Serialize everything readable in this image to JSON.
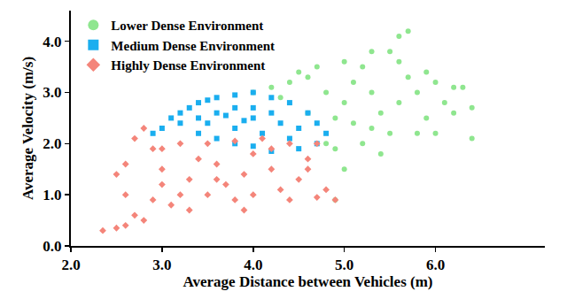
{
  "chart_data": {
    "type": "scatter",
    "x_label": "Average Distance between Vehicles (m)",
    "y_label": "Average Velocity (m/s)",
    "xlim": [
      2.0,
      7.2
    ],
    "ylim": [
      0.0,
      4.6
    ],
    "xticks": [
      {
        "value": 2,
        "label": "2.0"
      },
      {
        "value": 3,
        "label": "3.0"
      },
      {
        "value": 4,
        "label": "4.0"
      },
      {
        "value": 5,
        "label": "5.0"
      },
      {
        "value": 6,
        "label": "6.0"
      }
    ],
    "yticks": [
      {
        "value": 0,
        "label": "0.0"
      },
      {
        "value": 1,
        "label": "1.0"
      },
      {
        "value": 2,
        "label": "2.0"
      },
      {
        "value": 3,
        "label": "3.0"
      },
      {
        "value": 4,
        "label": "4.0"
      }
    ],
    "grid": false,
    "legend": "upper left",
    "series": [
      {
        "name": "Lower Dense Environment",
        "color": "#8fe68f",
        "marker": "circle",
        "x": [
          4.0,
          4.2,
          4.4,
          4.6,
          4.8,
          4.9,
          5.0,
          5.1,
          5.2,
          5.3,
          5.4,
          5.5,
          5.6,
          5.7,
          5.8,
          5.9,
          6.0,
          6.1,
          6.2,
          6.3,
          6.4,
          5.6,
          5.7,
          5.5,
          5.3,
          5.0,
          4.7,
          4.5,
          4.9,
          5.0,
          4.8,
          5.2,
          5.4,
          5.8,
          6.0,
          6.2,
          5.1,
          5.3,
          4.9,
          4.6,
          5.6,
          5.9,
          4.3,
          6.4
        ],
        "values": [
          3.0,
          3.1,
          3.2,
          3.3,
          3.0,
          2.5,
          2.8,
          3.2,
          3.5,
          3.0,
          2.6,
          2.2,
          2.8,
          3.3,
          3.0,
          2.5,
          2.2,
          2.8,
          2.6,
          3.1,
          2.1,
          4.1,
          4.2,
          3.8,
          3.8,
          3.6,
          3.5,
          3.4,
          1.9,
          1.5,
          2.0,
          2.0,
          1.8,
          2.2,
          3.2,
          3.1,
          2.4,
          2.3,
          0.9,
          2.6,
          3.6,
          3.4,
          2.9,
          2.7
        ]
      },
      {
        "name": "Medium Dense Environment",
        "color": "#1aaeef",
        "marker": "square",
        "x": [
          3.2,
          3.3,
          3.4,
          3.5,
          3.6,
          3.8,
          4.0,
          3.4,
          3.6,
          3.8,
          4.0,
          4.2,
          4.4,
          4.6,
          4.7,
          4.8,
          4.7,
          4.5,
          4.2,
          4.0,
          3.8,
          3.6,
          3.4,
          3.2,
          3.0,
          3.5,
          3.8,
          4.1,
          4.3,
          4.5,
          4.0,
          4.2,
          3.9,
          4.4,
          3.7,
          2.9,
          3.1
        ],
        "values": [
          2.6,
          2.7,
          2.8,
          2.85,
          2.9,
          2.95,
          3.0,
          2.5,
          2.6,
          2.7,
          2.7,
          2.9,
          2.8,
          2.6,
          2.4,
          2.2,
          2.0,
          1.9,
          1.85,
          1.95,
          2.0,
          2.1,
          2.2,
          2.4,
          2.3,
          2.4,
          2.3,
          2.2,
          2.4,
          2.3,
          2.5,
          2.6,
          2.45,
          2.1,
          2.55,
          2.2,
          2.5
        ]
      },
      {
        "name": "Highly Dense Environment",
        "color": "#f4857a",
        "marker": "diamond",
        "x": [
          2.35,
          2.5,
          2.6,
          2.8,
          2.5,
          2.6,
          2.7,
          2.8,
          2.9,
          3.0,
          3.0,
          3.1,
          3.2,
          3.3,
          3.4,
          3.5,
          3.6,
          3.7,
          3.8,
          3.9,
          4.0,
          4.1,
          4.2,
          4.3,
          4.4,
          4.5,
          4.6,
          4.7,
          4.8,
          4.9,
          4.7,
          3.5,
          3.3,
          2.9,
          3.0,
          3.2,
          3.8,
          4.4,
          4.0,
          2.6,
          3.6,
          4.2,
          4.6,
          3.9,
          2.7
        ],
        "values": [
          0.3,
          0.35,
          0.4,
          0.5,
          1.4,
          1.6,
          2.1,
          2.3,
          1.9,
          1.5,
          1.2,
          0.8,
          1.0,
          1.3,
          1.7,
          2.0,
          1.6,
          1.2,
          0.9,
          1.4,
          1.8,
          2.1,
          1.5,
          1.1,
          0.9,
          1.3,
          1.7,
          2.0,
          1.1,
          0.9,
          0.95,
          1.0,
          0.7,
          0.9,
          1.9,
          2.0,
          2.05,
          2.0,
          1.0,
          1.0,
          1.3,
          1.9,
          1.5,
          0.7,
          0.6
        ]
      }
    ]
  }
}
